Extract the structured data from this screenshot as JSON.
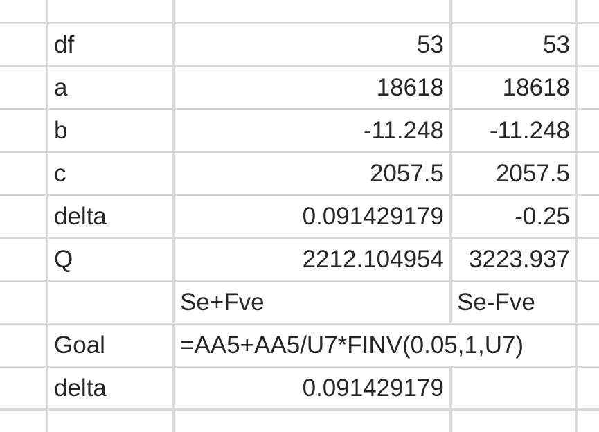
{
  "rows": [
    {
      "label": "df",
      "col1": "53",
      "col2": "53"
    },
    {
      "label": "a",
      "col1": "18618",
      "col2": "18618"
    },
    {
      "label": "b",
      "col1": "-11.248",
      "col2": "-11.248"
    },
    {
      "label": "c",
      "col1": "2057.5",
      "col2": "2057.5"
    },
    {
      "label": "delta",
      "col1": "0.091429179",
      "col2": "-0.25"
    },
    {
      "label": "Q",
      "col1": "2212.104954",
      "col2": "3223.937"
    },
    {
      "label": "",
      "col1": "Se+Fve",
      "col2": "Se-Fve"
    },
    {
      "label": "Goal",
      "formula": "=AA5+AA5/U7*FINV(0.05,1,U7)"
    },
    {
      "label": "delta",
      "col1": "0.091429179",
      "col2": ""
    }
  ],
  "grid_color": "#d9d9d9"
}
